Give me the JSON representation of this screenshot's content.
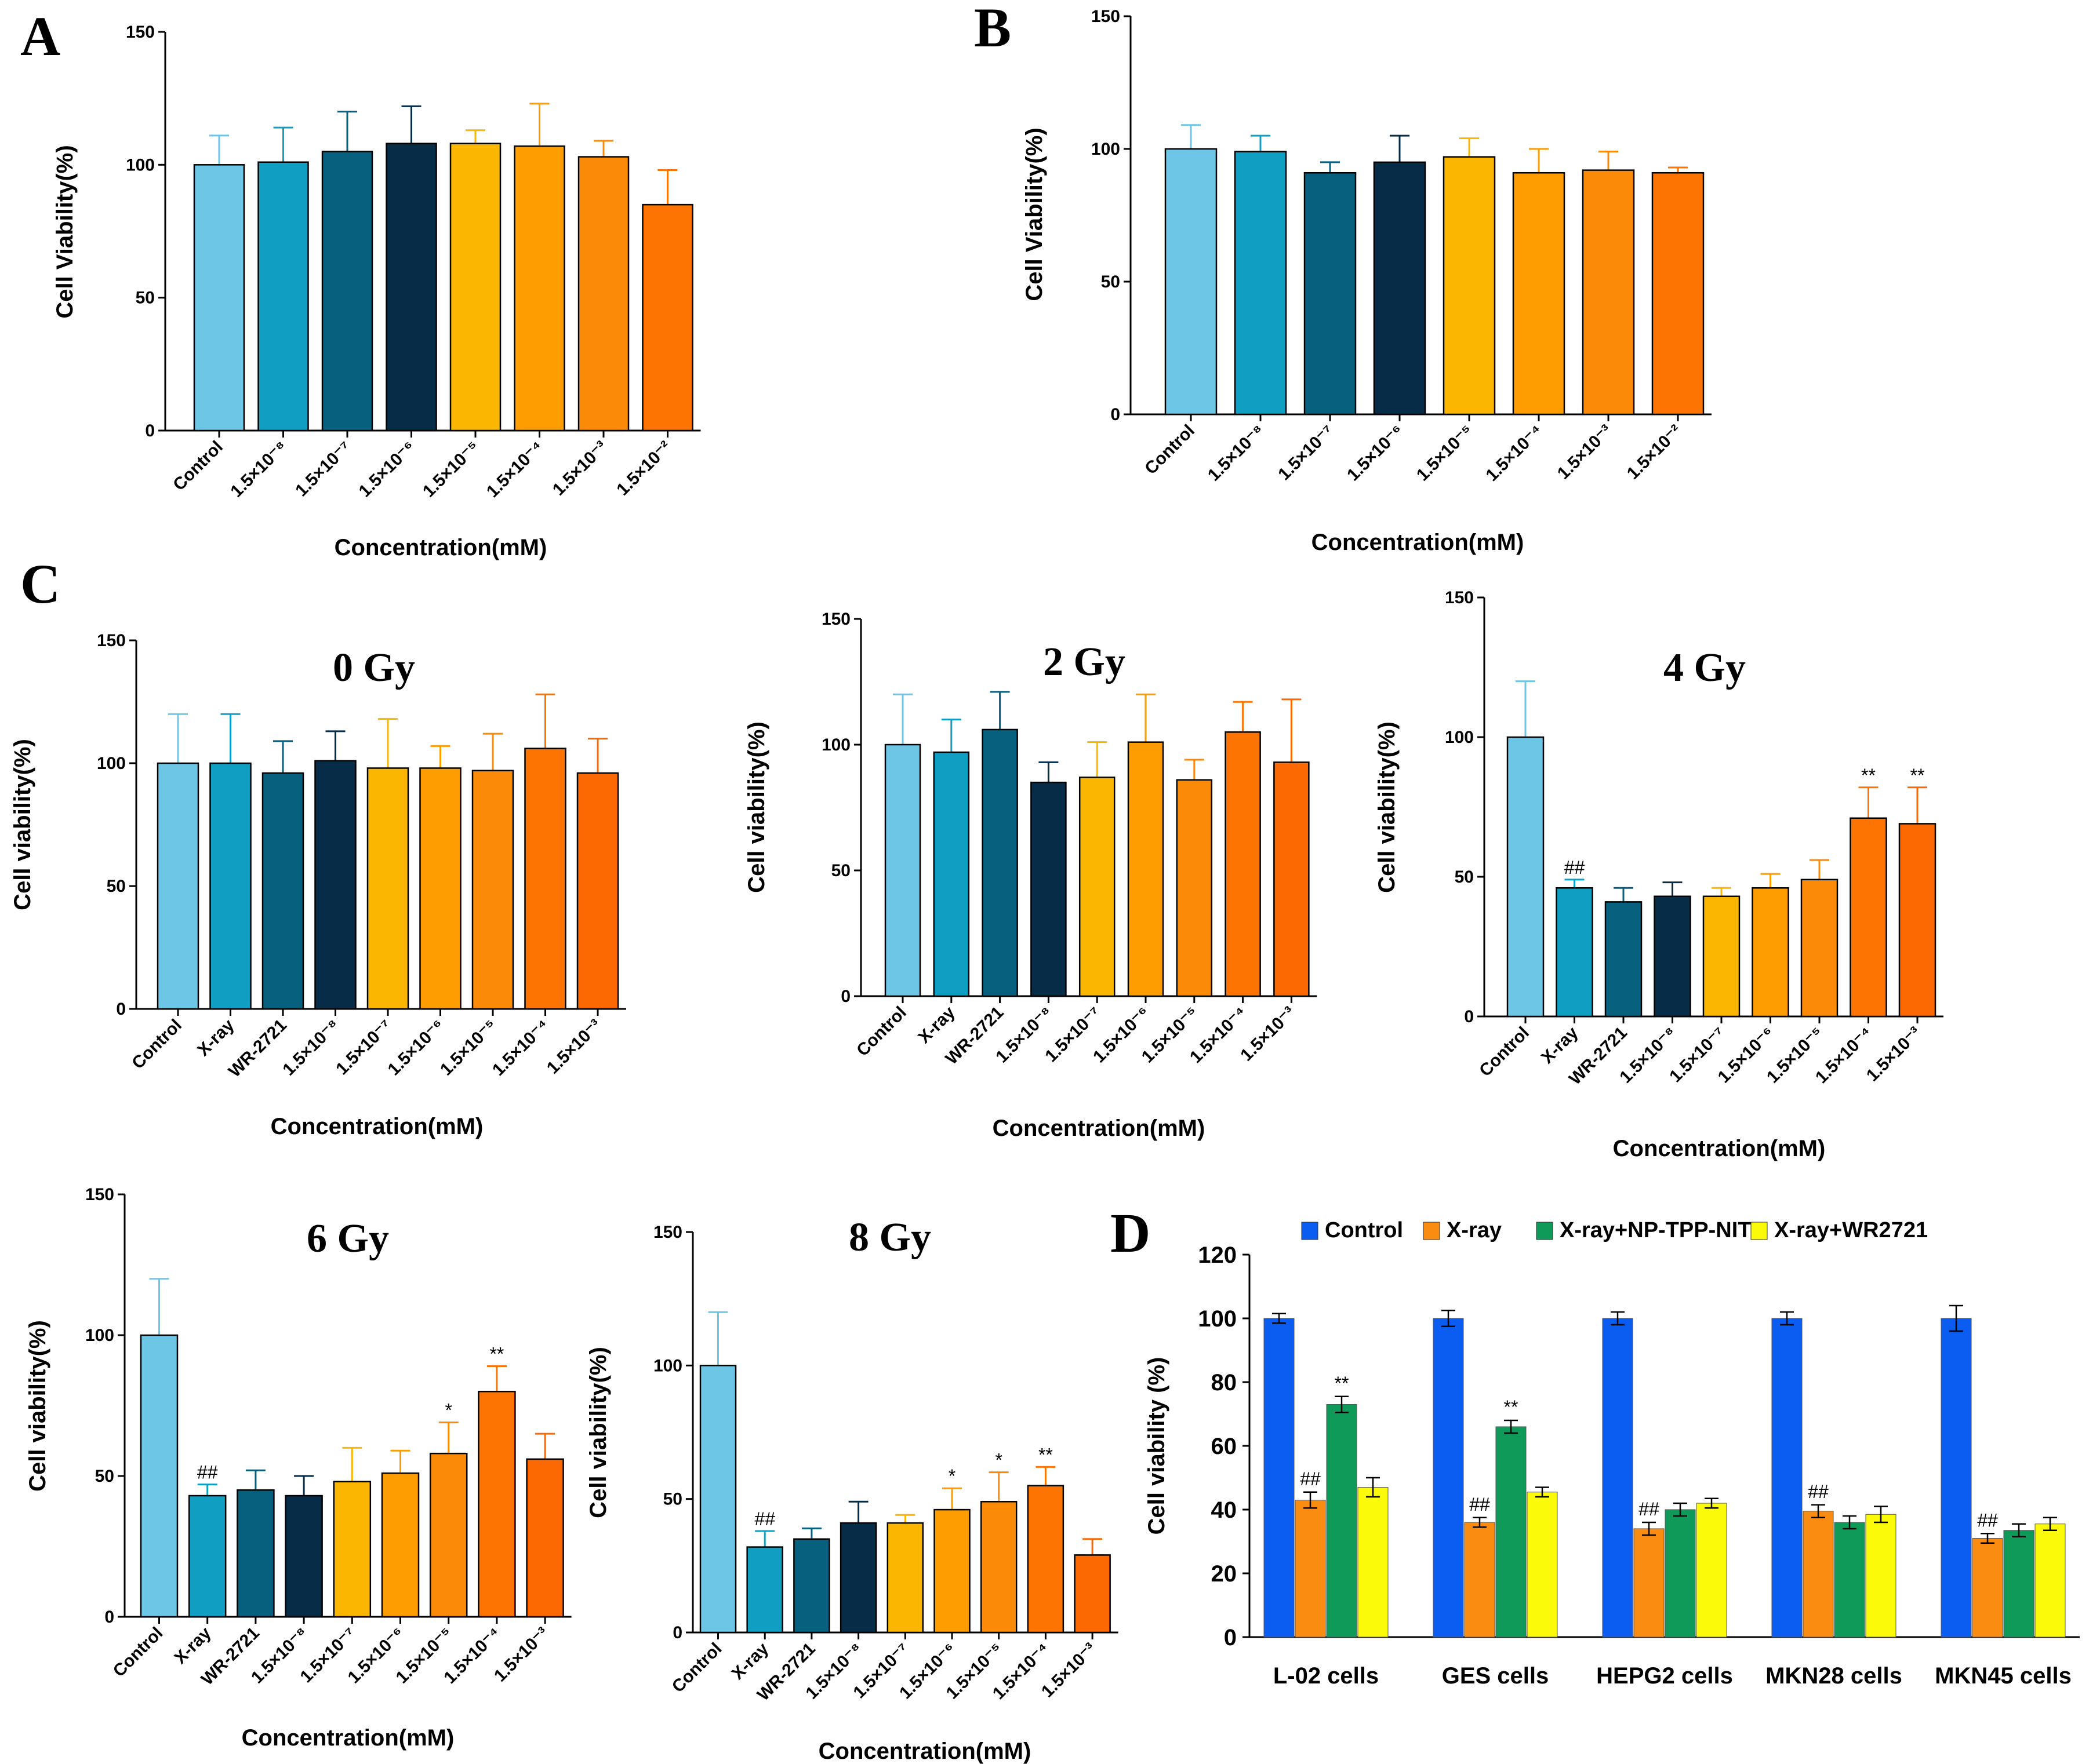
{
  "chart_data": [
    {
      "id": "A",
      "type": "bar",
      "panel_label": "A",
      "title": "",
      "xlabel": "Concentration(mM)",
      "ylabel": "Cell Viability(%)",
      "ylim": [
        0,
        150
      ],
      "yticks": [
        "0",
        "50",
        "100",
        "150"
      ],
      "categories": [
        "Control",
        "1.5×10⁻⁸",
        "1.5×10⁻⁷",
        "1.5×10⁻⁶",
        "1.5×10⁻⁵",
        "1.5×10⁻⁴",
        "1.5×10⁻³",
        "1.5×10⁻²"
      ],
      "values": [
        100,
        101,
        105,
        108,
        108,
        107,
        103,
        85
      ],
      "errors": [
        11,
        13,
        15,
        14,
        5,
        16,
        6,
        13
      ],
      "colors": [
        "#6ec6e6",
        "#109fc3",
        "#08607f",
        "#062c47",
        "#fbb602",
        "#fd9d02",
        "#fc8a09",
        "#fd7402"
      ],
      "annotations": [
        "",
        "",
        "",
        "",
        "",
        "",
        "",
        ""
      ]
    },
    {
      "id": "B",
      "type": "bar",
      "panel_label": "B",
      "title": "",
      "xlabel": "Concentration(mM)",
      "ylabel": "Cell Viability(%)",
      "ylim": [
        0,
        150
      ],
      "yticks": [
        "0",
        "50",
        "100",
        "150"
      ],
      "categories": [
        "Control",
        "1.5×10⁻⁸",
        "1.5×10⁻⁷",
        "1.5×10⁻⁶",
        "1.5×10⁻⁵",
        "1.5×10⁻⁴",
        "1.5×10⁻³",
        "1.5×10⁻²"
      ],
      "values": [
        100,
        99,
        91,
        95,
        97,
        91,
        92,
        91
      ],
      "errors": [
        9,
        6,
        4,
        10,
        7,
        9,
        7,
        2
      ],
      "colors": [
        "#6ec6e6",
        "#109fc3",
        "#08607f",
        "#062c47",
        "#fbb602",
        "#fd9d02",
        "#fc8a09",
        "#fd7402"
      ],
      "annotations": [
        "",
        "",
        "",
        "",
        "",
        "",
        "",
        ""
      ]
    },
    {
      "id": "C0",
      "type": "bar",
      "panel_label": "C",
      "title": "0 Gy",
      "xlabel": "Concentration(mM)",
      "ylabel": "Cell viability(%)",
      "ylim": [
        0,
        150
      ],
      "yticks": [
        "0",
        "50",
        "100",
        "150"
      ],
      "categories": [
        "Control",
        "X-ray",
        "WR-2721",
        "1.5×10⁻⁸",
        "1.5×10⁻⁷",
        "1.5×10⁻⁶",
        "1.5×10⁻⁵",
        "1.5×10⁻⁴",
        "1.5×10⁻³"
      ],
      "values": [
        100,
        100,
        96,
        101,
        98,
        98,
        97,
        106,
        96
      ],
      "errors": [
        20,
        20,
        13,
        12,
        20,
        9,
        15,
        22,
        14
      ],
      "colors": [
        "#6ec6e6",
        "#109fc3",
        "#08607f",
        "#062c47",
        "#fbb602",
        "#fd9d02",
        "#fc8a09",
        "#fd7402",
        "#fc6802"
      ],
      "annotations": [
        "",
        "",
        "",
        "",
        "",
        "",
        "",
        "",
        ""
      ]
    },
    {
      "id": "C2",
      "type": "bar",
      "panel_label": "",
      "title": "2 Gy",
      "xlabel": "Concentration(mM)",
      "ylabel": "Cell viability(%)",
      "ylim": [
        0,
        150
      ],
      "yticks": [
        "0",
        "50",
        "100",
        "150"
      ],
      "categories": [
        "Control",
        "X-ray",
        "WR-2721",
        "1.5×10⁻⁸",
        "1.5×10⁻⁷",
        "1.5×10⁻⁶",
        "1.5×10⁻⁵",
        "1.5×10⁻⁴",
        "1.5×10⁻³"
      ],
      "values": [
        100,
        97,
        106,
        85,
        87,
        101,
        86,
        105,
        93
      ],
      "errors": [
        20,
        13,
        15,
        8,
        14,
        19,
        8,
        12,
        25
      ],
      "colors": [
        "#6ec6e6",
        "#109fc3",
        "#08607f",
        "#062c47",
        "#fbb602",
        "#fd9d02",
        "#fc8a09",
        "#fd7402",
        "#fc6802"
      ],
      "annotations": [
        "",
        "",
        "",
        "",
        "",
        "",
        "",
        "",
        ""
      ]
    },
    {
      "id": "C4",
      "type": "bar",
      "panel_label": "",
      "title": "4 Gy",
      "xlabel": "Concentration(mM)",
      "ylabel": "Cell viability(%)",
      "ylim": [
        0,
        150
      ],
      "yticks": [
        "0",
        "50",
        "100",
        "150"
      ],
      "categories": [
        "Control",
        "X-ray",
        "WR-2721",
        "1.5×10⁻⁸",
        "1.5×10⁻⁷",
        "1.5×10⁻⁶",
        "1.5×10⁻⁵",
        "1.5×10⁻⁴",
        "1.5×10⁻³"
      ],
      "values": [
        100,
        46,
        41,
        43,
        43,
        46,
        49,
        71,
        69
      ],
      "errors": [
        20,
        3,
        5,
        5,
        3,
        5,
        7,
        11,
        13
      ],
      "colors": [
        "#6ec6e6",
        "#109fc3",
        "#08607f",
        "#062c47",
        "#fbb602",
        "#fd9d02",
        "#fc8a09",
        "#fd7402",
        "#fc6802"
      ],
      "annotations": [
        "",
        "##",
        "",
        "",
        "",
        "",
        "",
        "**",
        "**"
      ]
    },
    {
      "id": "C6",
      "type": "bar",
      "panel_label": "",
      "title": "6 Gy",
      "xlabel": "Concentration(mM)",
      "ylabel": "Cell viability(%)",
      "ylim": [
        0,
        150
      ],
      "yticks": [
        "0",
        "50",
        "100",
        "150"
      ],
      "categories": [
        "Control",
        "X-ray",
        "WR-2721",
        "1.5×10⁻⁸",
        "1.5×10⁻⁷",
        "1.5×10⁻⁶",
        "1.5×10⁻⁵",
        "1.5×10⁻⁴",
        "1.5×10⁻³"
      ],
      "values": [
        100,
        43,
        45,
        43,
        48,
        51,
        58,
        80,
        56
      ],
      "errors": [
        20,
        4,
        7,
        7,
        12,
        8,
        11,
        9,
        9
      ],
      "colors": [
        "#6ec6e6",
        "#109fc3",
        "#08607f",
        "#062c47",
        "#fbb602",
        "#fd9d02",
        "#fc8a09",
        "#fd7402",
        "#fc6802"
      ],
      "annotations": [
        "",
        "##",
        "",
        "",
        "",
        "",
        "*",
        "**",
        ""
      ]
    },
    {
      "id": "C8",
      "type": "bar",
      "panel_label": "",
      "title": "8 Gy",
      "xlabel": "Concentration(mM)",
      "ylabel": "Cell viability(%)",
      "ylim": [
        0,
        150
      ],
      "yticks": [
        "0",
        "50",
        "100",
        "150"
      ],
      "categories": [
        "Control",
        "X-ray",
        "WR-2721",
        "1.5×10⁻⁸",
        "1.5×10⁻⁷",
        "1.5×10⁻⁶",
        "1.5×10⁻⁵",
        "1.5×10⁻⁴",
        "1.5×10⁻³"
      ],
      "values": [
        100,
        32,
        35,
        41,
        41,
        46,
        49,
        55,
        29
      ],
      "errors": [
        20,
        6,
        4,
        8,
        3,
        8,
        11,
        7,
        6
      ],
      "colors": [
        "#6ec6e6",
        "#109fc3",
        "#08607f",
        "#062c47",
        "#fbb602",
        "#fd9d02",
        "#fc8a09",
        "#fd7402",
        "#fc6802"
      ],
      "annotations": [
        "",
        "##",
        "",
        "",
        "",
        "*",
        "*",
        "**",
        ""
      ]
    },
    {
      "id": "D",
      "type": "bar",
      "panel_label": "D",
      "title": "",
      "xlabel": "",
      "ylabel": "Cell viability (%)",
      "ylim": [
        0,
        120
      ],
      "yticks": [
        "0",
        "20",
        "40",
        "60",
        "80",
        "100",
        "120"
      ],
      "categories": [
        "L-02 cells",
        "GES cells",
        "HEPG2 cells",
        "MKN28 cells",
        "MKN45 cells"
      ],
      "series": [
        {
          "name": "Control",
          "color": "#0b5cf0",
          "values": [
            100,
            100,
            100,
            100,
            100
          ],
          "errors": [
            1.5,
            2.5,
            2,
            2,
            4
          ],
          "annotations": [
            "",
            "",
            "",
            "",
            ""
          ]
        },
        {
          "name": "X-ray",
          "color": "#fb8c12",
          "values": [
            43,
            36,
            34,
            39.5,
            31
          ],
          "errors": [
            2.5,
            1.5,
            2,
            2,
            1.5
          ],
          "annotations": [
            "##",
            "##",
            "##",
            "##",
            "##"
          ]
        },
        {
          "name": "X-ray+NP-TPP-NIT",
          "color": "#0f9a5a",
          "values": [
            73,
            66,
            40,
            36,
            33.5
          ],
          "errors": [
            2.5,
            2,
            2,
            2,
            2
          ],
          "annotations": [
            "**",
            "**",
            "",
            "",
            ""
          ]
        },
        {
          "name": "X-ray+WR2721",
          "color": "#fbfb09",
          "values": [
            47,
            45.5,
            42,
            38.5,
            35.5
          ],
          "errors": [
            3,
            1.5,
            1.5,
            2.5,
            2
          ],
          "annotations": [
            "",
            "",
            "",
            "",
            ""
          ]
        }
      ]
    }
  ]
}
